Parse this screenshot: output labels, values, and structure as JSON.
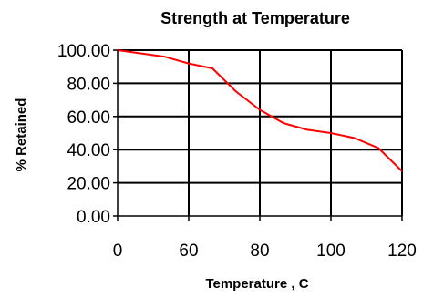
{
  "chart_data": {
    "type": "line",
    "title": "Strength at Temperature",
    "xlabel": "Temperature , C",
    "ylabel": "% Retained",
    "x_tick_labels": [
      "0",
      "60",
      "80",
      "100",
      "120"
    ],
    "y_tick_labels": [
      "0.00",
      "20.00",
      "40.00",
      "60.00",
      "80.00",
      "100.00"
    ],
    "ylim": [
      0,
      100
    ],
    "grid": true,
    "legend": "none",
    "series": [
      {
        "color": "#ff0000",
        "x": [
          0,
          10,
          20,
          30,
          40,
          50,
          60,
          70,
          80,
          90,
          100,
          110,
          120
        ],
        "y": [
          100.0,
          98.0,
          96.0,
          92.0,
          89.0,
          75.0,
          64.0,
          56.0,
          52.0,
          50.0,
          47.0,
          41.0,
          27.0
        ]
      }
    ]
  }
}
